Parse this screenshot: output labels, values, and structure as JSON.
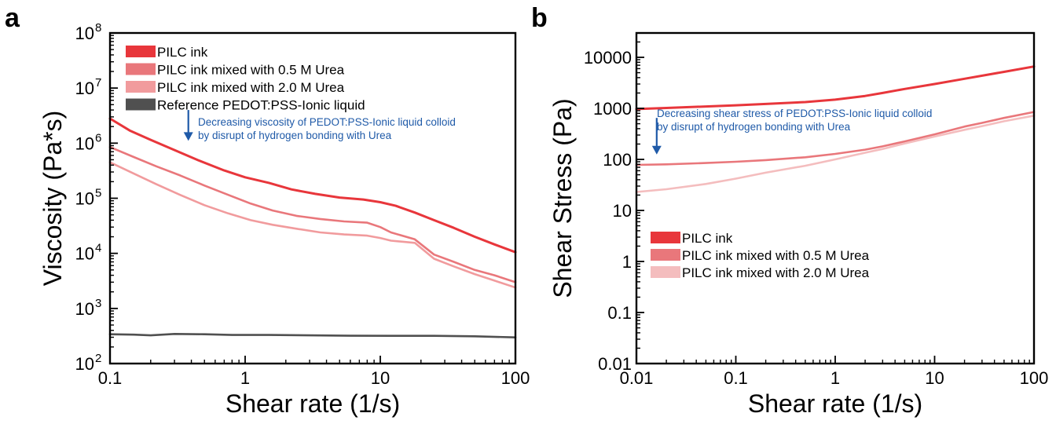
{
  "panels": [
    {
      "letter": "a"
    },
    {
      "letter": "b"
    }
  ],
  "colors": {
    "pilc": "#e8363b",
    "urea05": "#e9777b",
    "urea20": "#f19b9d",
    "reference": "#505050",
    "annotation": "#1f5aa8"
  },
  "chart_data": [
    {
      "type": "line",
      "panel": "a",
      "xlabel": "Shear rate (1/s)",
      "ylabel": "Viscosity (Pa*s)",
      "xscale": "log",
      "yscale": "log",
      "xlim": [
        0.1,
        100
      ],
      "ylim": [
        100,
        100000000
      ],
      "xticks": [
        {
          "value": 0.1,
          "label": "0.1"
        },
        {
          "value": 1,
          "label": "1"
        },
        {
          "value": 10,
          "label": "10"
        },
        {
          "value": 100,
          "label": "100"
        }
      ],
      "yticks": [
        {
          "value": 100,
          "base": "10",
          "exp": "2"
        },
        {
          "value": 1000,
          "base": "10",
          "exp": "3"
        },
        {
          "value": 10000,
          "base": "10",
          "exp": "4"
        },
        {
          "value": 100000,
          "base": "10",
          "exp": "5"
        },
        {
          "value": 1000000,
          "base": "10",
          "exp": "6"
        },
        {
          "value": 10000000,
          "base": "10",
          "exp": "7"
        },
        {
          "value": 100000000,
          "base": "10",
          "exp": "8"
        }
      ],
      "legend_position": "top-left",
      "series": [
        {
          "name": "PILC ink",
          "color": "#e8363b",
          "x": [
            0.1,
            0.14,
            0.2,
            0.3,
            0.45,
            0.7,
            1.0,
            1.5,
            2.2,
            3.3,
            5,
            7.5,
            10,
            13,
            18,
            25,
            35,
            50,
            70,
            100
          ],
          "y": [
            2800000,
            1700000,
            1150000,
            750000,
            490000,
            320000,
            240000,
            190000,
            145000,
            120000,
            103000,
            95000,
            85000,
            73000,
            55000,
            40000,
            29000,
            20000,
            14500,
            10500
          ]
        },
        {
          "name": "PILC ink mixed with 0.5 M Urea",
          "color": "#e9777b",
          "x": [
            0.1,
            0.15,
            0.22,
            0.33,
            0.5,
            0.75,
            1.1,
            1.6,
            2.4,
            3.6,
            5.4,
            8,
            10,
            12,
            18,
            25,
            35,
            50,
            70,
            100
          ],
          "y": [
            850000,
            560000,
            380000,
            260000,
            170000,
            115000,
            80000,
            60000,
            48000,
            42000,
            38000,
            36000,
            30000,
            24000,
            18000,
            9500,
            7000,
            5000,
            4000,
            3000
          ]
        },
        {
          "name": "PILC ink mixed with 2.0 M Urea",
          "color": "#f19b9d",
          "x": [
            0.1,
            0.15,
            0.22,
            0.33,
            0.5,
            0.75,
            1.1,
            1.6,
            2.4,
            3.6,
            5.4,
            8,
            10,
            12,
            18,
            25,
            35,
            50,
            70,
            100
          ],
          "y": [
            450000,
            280000,
            180000,
            115000,
            75000,
            53000,
            40000,
            33000,
            28000,
            24000,
            22000,
            21000,
            19000,
            17000,
            15500,
            8000,
            5800,
            4200,
            3200,
            2400
          ]
        },
        {
          "name": "Reference PEDOT:PSS-Ionic liquid",
          "color": "#505050",
          "x": [
            0.1,
            0.15,
            0.2,
            0.3,
            0.5,
            0.8,
            1.5,
            3,
            6,
            12,
            25,
            50,
            100
          ],
          "y": [
            340,
            335,
            325,
            345,
            340,
            330,
            330,
            325,
            320,
            318,
            318,
            312,
            298
          ]
        }
      ],
      "annotation": {
        "lines": [
          "Decreasing viscosity of PEDOT:PSS-Ionic liquid colloid",
          "by disrupt of hydrogen bonding with Urea"
        ],
        "arrow_x": 0.38,
        "arrow_y": [
          4000000,
          1100000
        ]
      }
    },
    {
      "type": "line",
      "panel": "b",
      "xlabel": "Shear rate (1/s)",
      "ylabel": "Shear Stress (Pa)",
      "xscale": "log",
      "yscale": "log",
      "xlim": [
        0.01,
        100
      ],
      "ylim": [
        0.01,
        30000
      ],
      "xticks": [
        {
          "value": 0.01,
          "label": "0.01"
        },
        {
          "value": 0.1,
          "label": "0.1"
        },
        {
          "value": 1,
          "label": "1"
        },
        {
          "value": 10,
          "label": "10"
        },
        {
          "value": 100,
          "label": "100"
        }
      ],
      "yticks": [
        {
          "value": 0.01,
          "label": "0.01"
        },
        {
          "value": 0.1,
          "label": "0.1"
        },
        {
          "value": 1,
          "label": "1"
        },
        {
          "value": 10,
          "label": "10"
        },
        {
          "value": 100,
          "label": "100"
        },
        {
          "value": 1000,
          "label": "1000"
        },
        {
          "value": 10000,
          "label": "10000"
        }
      ],
      "legend_position": "center-left",
      "series": [
        {
          "name": "PILC ink",
          "color": "#e8363b",
          "x": [
            0.01,
            0.02,
            0.05,
            0.1,
            0.2,
            0.5,
            1,
            2,
            3,
            5,
            10,
            20,
            50,
            100
          ],
          "y": [
            970,
            1020,
            1090,
            1150,
            1220,
            1330,
            1480,
            1750,
            2000,
            2400,
            3000,
            3800,
            5200,
            6600
          ]
        },
        {
          "name": "PILC ink mixed with 0.5 M Urea",
          "color": "#e9777b",
          "x": [
            0.01,
            0.02,
            0.05,
            0.1,
            0.2,
            0.5,
            1,
            2,
            3,
            5,
            10,
            20,
            30,
            50,
            100
          ],
          "y": [
            78,
            80,
            85,
            90,
            97,
            110,
            128,
            155,
            180,
            225,
            310,
            440,
            520,
            650,
            850
          ]
        },
        {
          "name": "PILC ink mixed with 2.0 M Urea",
          "color": "#f4bdbe",
          "x": [
            0.01,
            0.02,
            0.05,
            0.1,
            0.2,
            0.5,
            1,
            2,
            3,
            5,
            10,
            20,
            30,
            50,
            100
          ],
          "y": [
            23,
            26,
            33,
            42,
            55,
            75,
            100,
            135,
            160,
            205,
            280,
            380,
            450,
            560,
            720
          ]
        }
      ],
      "annotation": {
        "lines": [
          "Decreasing shear stress of PEDOT:PSS-Ionic liquid colloid",
          "by disrupt of hydrogen bonding with Urea"
        ],
        "arrow_x": 0.016,
        "arrow_y": [
          650,
          125
        ]
      }
    }
  ]
}
